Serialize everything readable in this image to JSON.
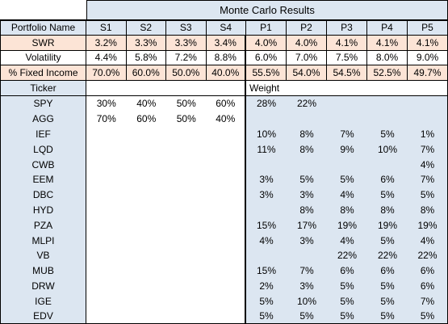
{
  "table": {
    "title": "Monte Carlo Results",
    "columns": [
      "Portfolio Name",
      "S1",
      "S2",
      "S3",
      "S4",
      "P1",
      "P2",
      "P3",
      "P4",
      "P5"
    ],
    "metrics": [
      [
        "SWR",
        "3.2%",
        "3.3%",
        "3.3%",
        "3.4%",
        "4.0%",
        "4.0%",
        "4.1%",
        "4.1%",
        "4.1%"
      ],
      [
        "Volatility",
        "4.4%",
        "5.8%",
        "7.2%",
        "8.8%",
        "6.0%",
        "7.0%",
        "7.5%",
        "8.0%",
        "9.0%"
      ],
      [
        "% Fixed Income",
        "70.0%",
        "60.0%",
        "50.0%",
        "40.0%",
        "55.5%",
        "54.0%",
        "54.5%",
        "52.5%",
        "49.7%"
      ]
    ],
    "weight_header": [
      "Ticker",
      "Weight"
    ],
    "weights": [
      [
        "SPY",
        "30%",
        "40%",
        "50%",
        "60%",
        "28%",
        "22%",
        null,
        null,
        null
      ],
      [
        "AGG",
        "70%",
        "60%",
        "50%",
        "40%",
        null,
        null,
        null,
        null,
        null
      ],
      [
        "IEF",
        null,
        null,
        null,
        null,
        "10%",
        "8%",
        "7%",
        "5%",
        "1%"
      ],
      [
        "LQD",
        null,
        null,
        null,
        null,
        "11%",
        "8%",
        "9%",
        "10%",
        "7%"
      ],
      [
        "CWB",
        null,
        null,
        null,
        null,
        null,
        null,
        null,
        null,
        "4%"
      ],
      [
        "EEM",
        null,
        null,
        null,
        null,
        "3%",
        "5%",
        "5%",
        "6%",
        "7%"
      ],
      [
        "DBC",
        null,
        null,
        null,
        null,
        "3%",
        "3%",
        "4%",
        "5%",
        "5%"
      ],
      [
        "HYD",
        null,
        null,
        null,
        null,
        null,
        "8%",
        "8%",
        "8%",
        "8%"
      ],
      [
        "PZA",
        null,
        null,
        null,
        null,
        "15%",
        "17%",
        "19%",
        "19%",
        "19%"
      ],
      [
        "MLPI",
        null,
        null,
        null,
        null,
        "4%",
        "3%",
        "4%",
        "5%",
        "4%"
      ],
      [
        "VB",
        null,
        null,
        null,
        null,
        null,
        null,
        "22%",
        "22%",
        "22%"
      ],
      [
        "MUB",
        null,
        null,
        null,
        null,
        "15%",
        "7%",
        "6%",
        "6%",
        "6%"
      ],
      [
        "DRW",
        null,
        null,
        null,
        null,
        "2%",
        "3%",
        "5%",
        "5%",
        "6%"
      ],
      [
        "IGE",
        null,
        null,
        null,
        null,
        "5%",
        "10%",
        "5%",
        "5%",
        "7%"
      ],
      [
        "EDV",
        null,
        null,
        null,
        null,
        "5%",
        "5%",
        "5%",
        "5%",
        "5%"
      ]
    ]
  }
}
